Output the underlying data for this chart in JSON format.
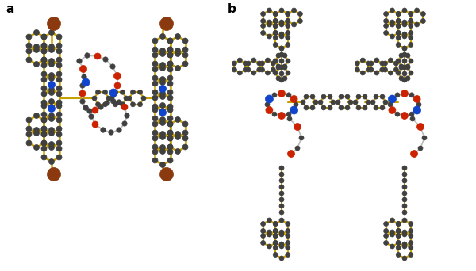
{
  "figsize": [
    6.0,
    3.42
  ],
  "dpi": 100,
  "background_color": "#ffffff",
  "label_a": "a",
  "label_b": "b",
  "label_fontsize": 11,
  "label_fontweight": "bold",
  "yellow": "#C8A000",
  "dark": "#404040",
  "red": "#CC2200",
  "blue": "#1144CC",
  "brown": "#8B3A10",
  "gray": "#888888",
  "lgray": "#BBBBBB",
  "white_atom": "#DDDDDD"
}
